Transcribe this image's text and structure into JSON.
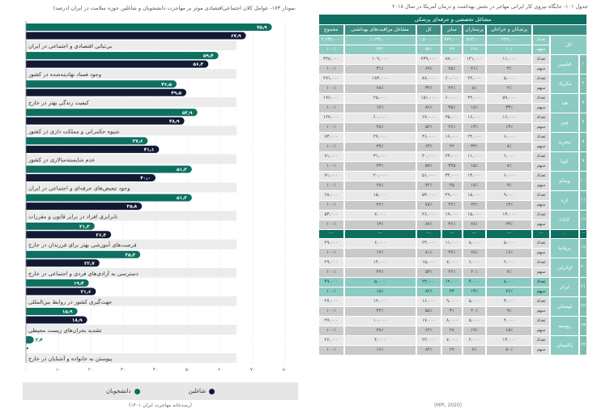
{
  "chart_data": {
    "type": "bar",
    "orientation": "horizontal",
    "title": "نمودار ۱۷۳- عوامل کلان اجتماعی‌اقتصادی موثر بر مهاجرت دانشجویان و شاغلین حوزه سلامت در ایران (درصد)",
    "categories": [
      "بی‌ثباتی اقتصادی و اجتماعی در ایران",
      "وجود فساد نهادینه‌شده در کشور",
      "کیفیت زندگی بهتر در خارج",
      "شیوه حکمرانی و مملکت داری در کشور",
      "عدم شایسته‌سالاری در کشور",
      "وجود تبعیض‌های حرفه‌ای و اجتماعی در ایران",
      "نابرابری افراد در برابر قانون و مقررات",
      "فرصت‌های آموزشی بهتر برای فرزندان در خارج",
      "دسترسی به آزادی‌های فردی و اجتماعی در خارج",
      "جهت‌گیری کشور در روابط بین‌المللی",
      "تشدید بحران‌های زیست محیطی",
      "پیوستن به خانواده و آشنایان در خارج"
    ],
    "series": [
      {
        "name": "دانشجویان",
        "color": "#0d7060",
        "values": [
          75.9,
          59.4,
          46.5,
          52.9,
          37.6,
          51.2,
          51.2,
          21.2,
          35.3,
          19.4,
          15.9,
          2.4
        ],
        "labels": [
          "۷۵٫۹",
          "۵۹٫۴",
          "۴۶٫۵",
          "۵۲٫۹",
          "۳۷٫۶",
          "۵۱٫۲",
          "۵۱٫۲",
          "۲۱٫۲",
          "۳۵٫۳",
          "۱۹٫۴",
          "۱۵٫۹",
          "۲٫۴"
        ]
      },
      {
        "name": "شاغلین",
        "color": "#121a33",
        "values": [
          67.9,
          56.3,
          49.5,
          48.9,
          41.1,
          40.0,
          35.8,
          26.3,
          22.7,
          21.6,
          18.9,
          0
        ],
        "labels": [
          "۶۷٫۹",
          "۵۶٫۳",
          "۴۹٫۵",
          "۴۸٫۹",
          "۴۱٫۱",
          "۴۰٫۰",
          "۳۵٫۸",
          "۲۶٫۳",
          "۲۲٫۷",
          "۲۱٫۶",
          "۱۸٫۹",
          ""
        ]
      }
    ],
    "xlim": [
      0,
      80
    ],
    "xticks": [
      0,
      10,
      20,
      30,
      40,
      50,
      60,
      70,
      80
    ],
    "xtick_labels": [
      "۰",
      "۱۰",
      "۲۰",
      "۳۰",
      "۴۰",
      "۵۰",
      "۶۰",
      "۷۰",
      "۸۰"
    ],
    "grid": true,
    "legend_position": "bottom",
    "source": "(رصدخانه مهاجرت ایران ۱۴۰۱)"
  },
  "table": {
    "title": "جدول ۱۰۱- جایگاه نیروی کار ایرانی مهاجر در بخش بهداشت و درمان آمریکا در سال ۲۰۱۸",
    "group_header": "مشاغل تخصصی و حرفه‌ای پزشکی",
    "columns": [
      "پزشکان و جراحان",
      "پرستاران",
      "سایر",
      "کل",
      "مشاغل مراقبت‌های بهداشتی",
      "مجموع"
    ],
    "count_label": "تعداد",
    "share_label": "سهم",
    "gap_mark": "...",
    "source": "(MPI, 2020)",
    "rows": [
      {
        "rank": "",
        "country": "کل",
        "count": [
          "۲۲۹,۰۰۰",
          "۵۱۲,۰۰۰",
          "۷۷۹,۰۰۰",
          "۱,۵۰۰,۰۰۰",
          "۱,۱۳۹,۰۰۰",
          "۲,۶۳۷,۰۰۰"
        ],
        "share": [
          "۱۰٪",
          "۱۹٪",
          "۲۹",
          "۵۷٪",
          "۴۳٪",
          "۱۰۰٪"
        ]
      },
      {
        "rank": "۱",
        "country": "فیلیپین",
        "count": [
          "۱۱,۰۰۰",
          "۱۴۱,۰۰۰",
          "۸۷,۰۰۰",
          "۲۳۹,۰۰۰",
          "۱۰۹,۰۰۰",
          "۳۴۸,۰۰۰"
        ],
        "share": [
          "۳٪",
          "۴۱٪",
          "۲۵٪",
          "۶۹٪",
          "۳۱٪",
          "۱۰۰٪"
        ]
      },
      {
        "rank": "۲",
        "country": "مکزیک",
        "count": [
          "۵,۰۰۰",
          "۲۲,۰۰۰",
          "۶۰,۰۰۰",
          "۸۷,۰۰۰",
          "۱۸۳,۰۰۰",
          "۲۷۱,۰۰۰"
        ],
        "share": [
          "۲٪",
          "۸٪",
          "۲۲٪",
          "۳۲٪",
          "۶۸٪",
          "۱۰۰٪"
        ]
      },
      {
        "rank": "۳",
        "country": "هند",
        "count": [
          "۵۹,۰۰۰",
          "۳۲,۰۰۰",
          "۶۰,۰۰۰",
          "۱۵۱,۰۰۰",
          "۲۵,۰۰۰",
          "۱۷۶,۰۰۰"
        ],
        "share": [
          "۳۳٪",
          "۱۸٪",
          "۳۵٪",
          "۸۶٪",
          "۱۴٪",
          "۱۰۰٪"
        ]
      },
      {
        "rank": "۴",
        "country": "چین",
        "count": [
          "۱۶,۰۰۰",
          "۱۶,۰۰۰",
          "۳۵,۰۰۰",
          "۶۷,۰۰۰",
          "۶۰,۰۰۰",
          "۱۲۷,۰۰۰"
        ],
        "share": [
          "۱۳٪",
          "۱۳٪",
          "۲۶٪",
          "۵۲٪",
          "۴۸٪",
          "۱۰۰٪"
        ]
      },
      {
        "rank": "۸",
        "country": "نیجریه",
        "count": [
          "۶,۰۰۰",
          "۲۴,۰۰۰",
          "۱۶,۰۰۰",
          "۴۶,۰۰۰",
          "۲۷,۰۰۰",
          "۷۳,۰۰۰"
        ],
        "share": [
          "۸٪",
          "۳۳٪",
          "۲۲",
          "۶۳٪",
          "۳۷٪",
          "۱۰۰٪"
        ]
      },
      {
        "rank": "۹",
        "country": "کوبا",
        "count": [
          "۶,۰۰۰",
          "۱۱,۰۰۰",
          "۲۳,۰۰۰",
          "۴۰,۰۰۰",
          "۳۱,۰۰۰",
          "۷۱,۰۰۰"
        ],
        "share": [
          "۸٪",
          "۱۵٪",
          "۳۲۵",
          "۵۷٪",
          "۴۳٪",
          "۱۰۰٪"
        ]
      },
      {
        "rank": "۱۰",
        "country": "ویتنام",
        "count": [
          "۶,۰۰۰",
          "۱۳,۰۰۰",
          "۳۲,۰۰۰",
          "۵۱,۰۰۰",
          "۲۰,۰۰۰",
          "۷۱,۰۰۰"
        ],
        "share": [
          "۹٪",
          "۱۸٪",
          "۴۵",
          "۷۲٪",
          "۲۸٪",
          "۱۰۰٪"
        ]
      },
      {
        "rank": "۱۱",
        "country": "کره",
        "count": [
          "۹,۰۰۰",
          "۱۵,۰۰۰",
          "۲۹,۰۰۰",
          "۵۳,۰۰۰",
          "۱۵,۰۰۰",
          "۶۸,۰۰۰"
        ],
        "share": [
          "۱۳٪",
          "۲۲٪",
          "۴۲٪",
          "۷۸٪",
          "۲۲٪",
          "۱۰۰٪"
        ]
      },
      {
        "rank": "۱۲",
        "country": "کانادا",
        "count": [
          "۱۳,۰۰۰",
          "۱۵,۰۰۰",
          "۱۹,۰۰۰",
          "۴۶,۰۰۰",
          "۷,۰۰۰",
          "۵۳,۰۰۰"
        ],
        "share": [
          "۲۳٪",
          "۲۸٪",
          "۳۶٪",
          "۸۷٪",
          "۱۳٪",
          "۱۰۰٪"
        ]
      },
      {
        "gap": true
      },
      {
        "rank": "۱۹",
        "country": "بریتانیا",
        "count": [
          "۵,۰۰۰",
          "۸,۰۰۰",
          "۱۱,۰۰۰",
          "۲۴,۰۰۰",
          "۶,۰۰۰",
          "۲۹,۰۰۰"
        ],
        "share": [
          "۱۶٪",
          "۲۸٪",
          "۳۷٪",
          "۸۱٪",
          "۱۹٪",
          "۱۰۰٪"
        ]
      },
      {
        "rank": "۲۰",
        "country": "اوکراین",
        "count": [
          "۲,۰۰۰",
          "۶,۰۰۰",
          "۷,۰۰۰",
          "۱۵,۰۰۰",
          "۱۴,۰۰۰",
          "۲۹,۰۰۰"
        ],
        "share": [
          "۷٪",
          "۲۰٪",
          "۲۶٪",
          "۵۳٪",
          "۴۷٪",
          "۱۰۰٪"
        ]
      },
      {
        "rank": "۲۱",
        "country": "ایران",
        "highlight": true,
        "count": [
          "۸,۰۰۰",
          "۴,۰۰۰",
          "۱۲,۰۰۰",
          "۲۴,۰۰۰",
          "۵,۰۰۰",
          "۲۹,۰۰۰"
        ],
        "share": [
          "۲۶٪",
          "۱۳٪",
          "۴۳",
          "۸۲٪",
          "۱۸٪",
          "۱۰۰٪"
        ]
      },
      {
        "rank": "۲۲",
        "country": "لهستان",
        "count": [
          "۳,۰۰۰",
          "۵,۰۰۰",
          "۹,۰۰۰",
          "۱۶,۰۰۰",
          "۱۲,۰۰۰",
          "۲۷,۰۰۰"
        ],
        "share": [
          "۹٪",
          "۲۰٪",
          "۳۱",
          "۵۸٪",
          "۴۲٪",
          "۱۰۰٪"
        ]
      },
      {
        "rank": "۲۳",
        "country": "روسیه",
        "count": [
          "۴,۰۰۰",
          "۵,۰۰۰",
          "۸,۰۰۰",
          "۱۷,۰۰۰",
          "۱۰,۰۰۰",
          "۲۷,۰۰۰"
        ],
        "share": [
          "۱۵٪",
          "۱۹٪",
          "۲۸",
          "۶۲٪",
          "۳۸٪",
          "۱۰۰٪"
        ]
      },
      {
        "rank": "۲۴",
        "country": "پاکستان",
        "count": [
          "۱۳,۰۰۰",
          "۲,۰۰۰",
          "۷,۰۰۰",
          "۲۲,۰۰۰",
          "۴,۰۰۰",
          "۲۶,۰۰۰"
        ],
        "share": [
          "۵۰٪",
          "۷٪",
          "۲۷",
          "۸۴٪",
          "۱۶٪",
          "۱۰۰٪"
        ]
      }
    ]
  }
}
